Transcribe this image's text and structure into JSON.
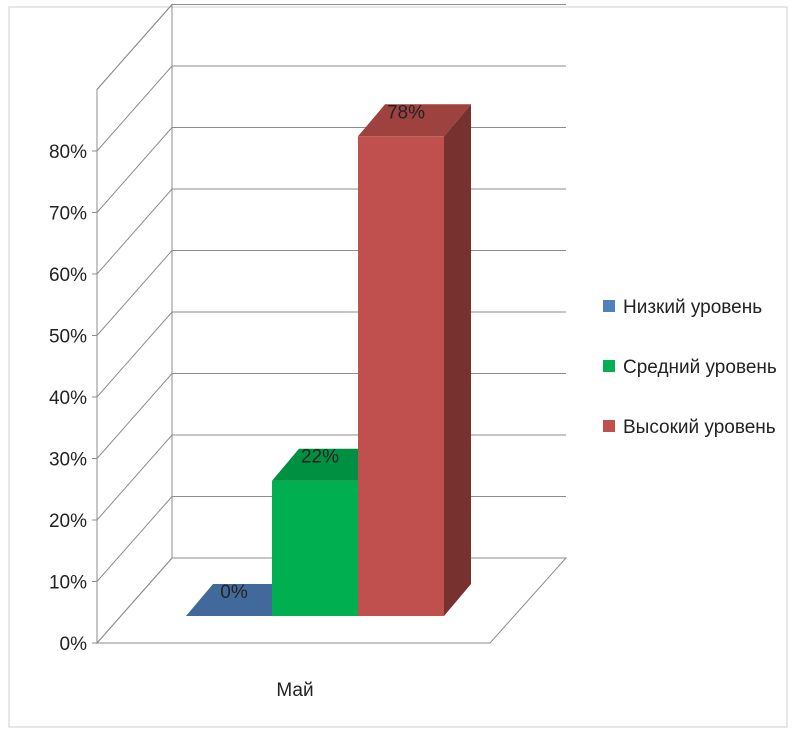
{
  "chart_data": {
    "type": "bar",
    "categories": [
      "Май"
    ],
    "series": [
      {
        "name": "Низкий уровень",
        "values": [
          0
        ],
        "color": "#4F81BD",
        "label": "0%"
      },
      {
        "name": "Средний уровень",
        "values": [
          22
        ],
        "color": "#00B050",
        "label": "22%"
      },
      {
        "name": "Высокий уровень",
        "values": [
          78
        ],
        "color": "#C0504D",
        "label": "78%"
      }
    ],
    "y_ticks": [
      "0%",
      "10%",
      "20%",
      "30%",
      "40%",
      "50%",
      "60%",
      "70%",
      "80%"
    ],
    "ylim": [
      0,
      90
    ],
    "unit": "%",
    "grid": true,
    "legend_position": "right",
    "projection": "3d-column"
  }
}
